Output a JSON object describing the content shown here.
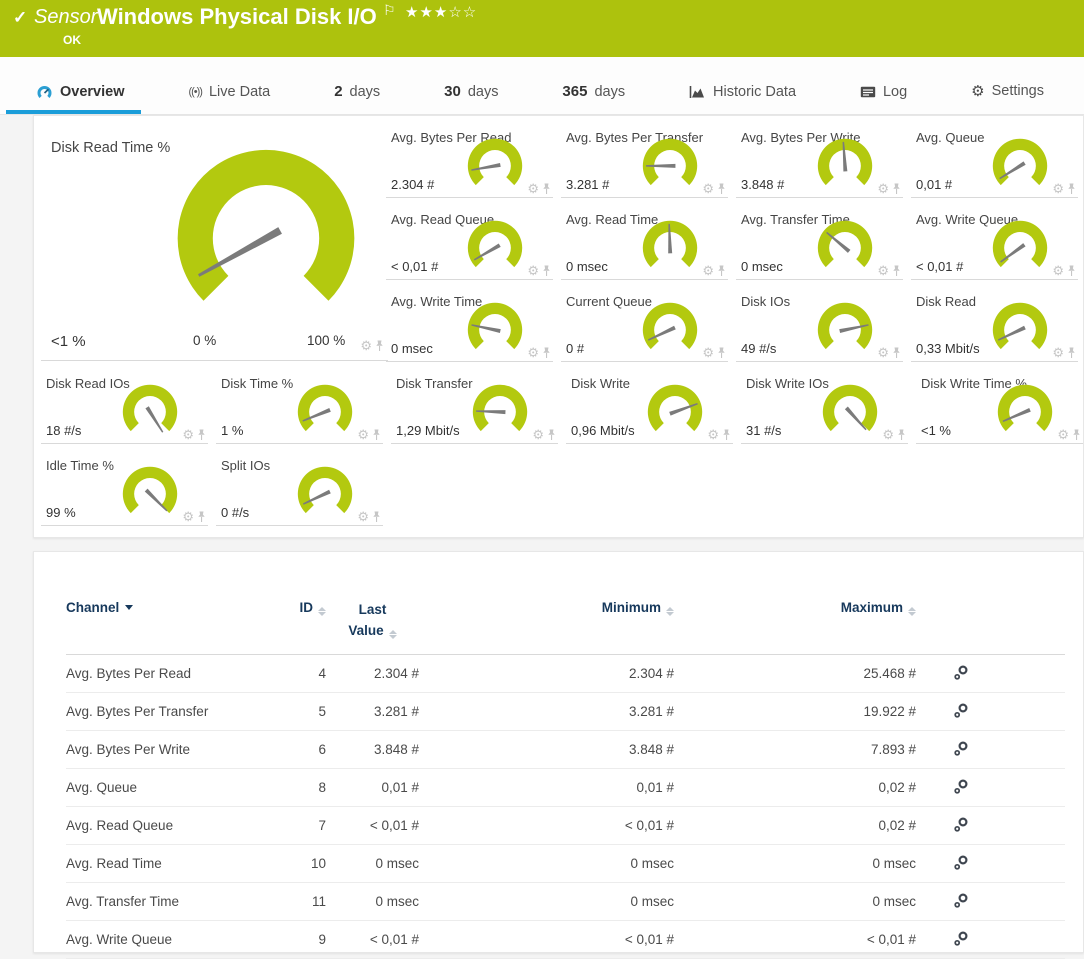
{
  "colors": {
    "accent_green": "#adc20d",
    "gauge_green": "#b3c90f",
    "accent_blue": "#1b9dd9",
    "header_navy": "#17395c"
  },
  "header": {
    "kicker": "Sensor",
    "title": "Windows Physical Disk I/O",
    "status": "OK",
    "stars_filled": "★★★",
    "stars_empty": "☆☆"
  },
  "tabs": [
    {
      "label": "Overview",
      "active": true
    },
    {
      "label": "Live Data"
    },
    {
      "num": "2",
      "label": "days"
    },
    {
      "num": "30",
      "label": "days"
    },
    {
      "num": "365",
      "label": "days"
    },
    {
      "label": "Historic Data"
    },
    {
      "label": "Log"
    },
    {
      "label": "Settings"
    }
  ],
  "big_gauge": {
    "title": "Disk Read Time %",
    "value": "<1 %",
    "min_label": "0 %",
    "max_label": "100 %",
    "needle_deg": -119
  },
  "gauges": [
    {
      "title": "Avg. Bytes Per Read",
      "value": "2.304 #",
      "needle_deg": -100
    },
    {
      "title": "Avg. Bytes Per Transfer",
      "value": "3.281 #",
      "needle_deg": -90
    },
    {
      "title": "Avg. Bytes Per Write",
      "value": "3.848 #",
      "needle_deg": -4
    },
    {
      "title": "Avg. Queue",
      "value": "0,01 #",
      "needle_deg": -122
    },
    {
      "title": "Avg. Read Queue",
      "value": "< 0,01 #",
      "needle_deg": -120
    },
    {
      "title": "Avg. Read Time",
      "value": "0 msec",
      "needle_deg": -2
    },
    {
      "title": "Avg. Transfer Time",
      "value": "0 msec",
      "needle_deg": -50
    },
    {
      "title": "Avg. Write Queue",
      "value": "< 0,01 #",
      "needle_deg": -126
    },
    {
      "title": "Avg. Write Time",
      "value": "0 msec",
      "needle_deg": -78
    },
    {
      "title": "Current Queue",
      "value": "0 #",
      "needle_deg": -115
    },
    {
      "title": "Disk IOs",
      "value": "49 #/s",
      "needle_deg": 78
    },
    {
      "title": "Disk Read",
      "value": "0,33 Mbit/s",
      "needle_deg": -115
    },
    {
      "title": "Disk Read IOs",
      "value": "18 #/s",
      "needle_deg": 148
    },
    {
      "title": "Disk Time %",
      "value": "1 %",
      "needle_deg": -112
    },
    {
      "title": "Disk Transfer",
      "value": "1,29 Mbit/s",
      "needle_deg": -88
    },
    {
      "title": "Disk Write",
      "value": "0,96 Mbit/s",
      "needle_deg": 70
    },
    {
      "title": "Disk Write IOs",
      "value": "31 #/s",
      "needle_deg": 138
    },
    {
      "title": "Disk Write Time %",
      "value": "<1 %",
      "needle_deg": -113
    },
    {
      "title": "Idle Time %",
      "value": "99 %",
      "needle_deg": 135
    },
    {
      "title": "Split IOs",
      "value": "0 #/s",
      "needle_deg": -115
    }
  ],
  "table": {
    "headers": {
      "channel": "Channel",
      "id": "ID",
      "last_line1": "Last",
      "last_line2": "Value",
      "minimum": "Minimum",
      "maximum": "Maximum"
    },
    "rows": [
      {
        "channel": "Avg. Bytes Per Read",
        "id": "4",
        "last": "2.304 #",
        "min": "2.304 #",
        "max": "25.468 #"
      },
      {
        "channel": "Avg. Bytes Per Transfer",
        "id": "5",
        "last": "3.281 #",
        "min": "3.281 #",
        "max": "19.922 #"
      },
      {
        "channel": "Avg. Bytes Per Write",
        "id": "6",
        "last": "3.848 #",
        "min": "3.848 #",
        "max": "7.893 #"
      },
      {
        "channel": "Avg. Queue",
        "id": "8",
        "last": "0,01 #",
        "min": "0,01 #",
        "max": "0,02 #"
      },
      {
        "channel": "Avg. Read Queue",
        "id": "7",
        "last": "< 0,01 #",
        "min": "< 0,01 #",
        "max": "0,02 #"
      },
      {
        "channel": "Avg. Read Time",
        "id": "10",
        "last": "0 msec",
        "min": "0 msec",
        "max": "0 msec"
      },
      {
        "channel": "Avg. Transfer Time",
        "id": "11",
        "last": "0 msec",
        "min": "0 msec",
        "max": "0 msec"
      },
      {
        "channel": "Avg. Write Queue",
        "id": "9",
        "last": "< 0,01 #",
        "min": "< 0,01 #",
        "max": "< 0,01 #"
      }
    ]
  }
}
